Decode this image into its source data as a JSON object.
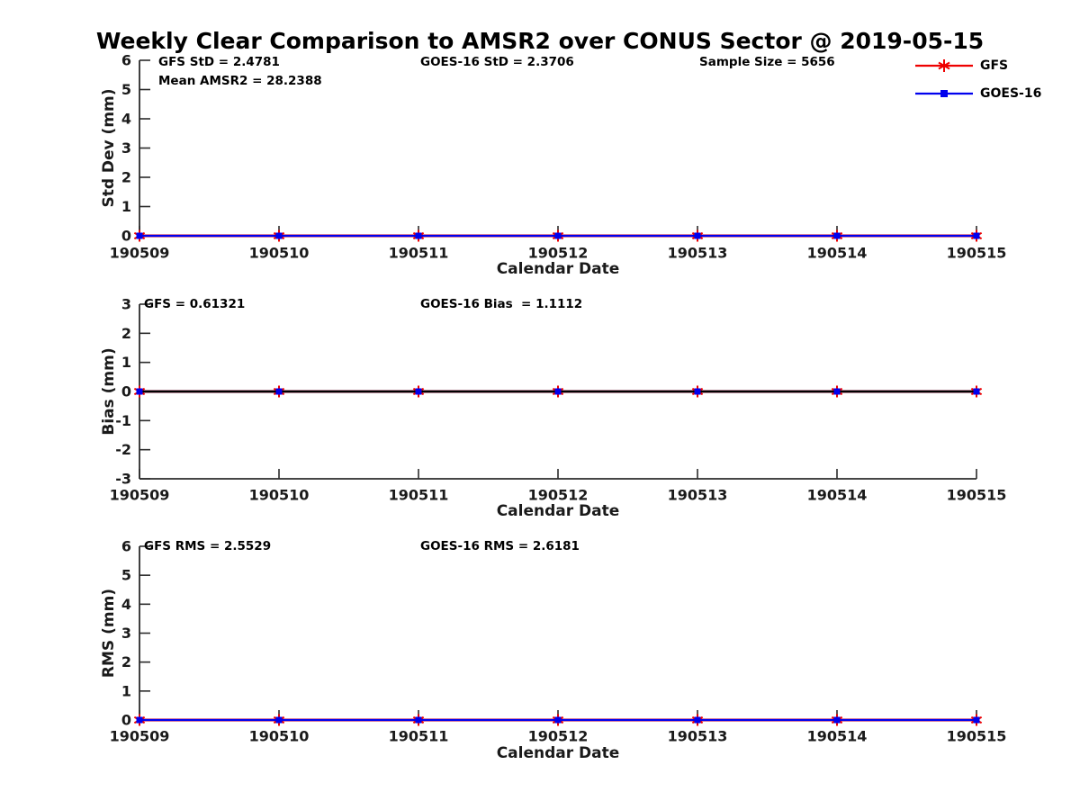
{
  "title": "Weekly Clear Comparison to AMSR2 over CONUS Sector @ 2019-05-15",
  "colors": {
    "gfs_red": "#ee0000",
    "goes_blue": "#0000ee",
    "axis": "#2b2b2b",
    "tick_label": "#1a1a1a",
    "annotation": "#000000",
    "zero_line": "#000000"
  },
  "legend": {
    "items": [
      {
        "label": "GFS",
        "color": "#ee0000",
        "marker": "asterisk"
      },
      {
        "label": "GOES-16",
        "color": "#0000ee",
        "marker": "square"
      }
    ]
  },
  "xlabel": "Calendar Date",
  "x_categories": [
    "190509",
    "190510",
    "190511",
    "190512",
    "190513",
    "190514",
    "190515"
  ],
  "chart_data": [
    {
      "type": "line",
      "name": "stddev",
      "ylabel": "Std Dev (mm)",
      "xlabel": "Calendar Date",
      "x": [
        "190509",
        "190510",
        "190511",
        "190512",
        "190513",
        "190514",
        "190515"
      ],
      "ylim": [
        0,
        6
      ],
      "yticks": [
        0,
        1,
        2,
        3,
        4,
        5,
        6
      ],
      "grid": false,
      "zero_line": false,
      "series": [
        {
          "name": "GFS",
          "color": "#ee0000",
          "marker": "asterisk",
          "values": [
            0,
            0,
            0,
            0,
            0,
            0,
            0
          ]
        },
        {
          "name": "GOES-16",
          "color": "#0000ee",
          "marker": "square",
          "values": [
            0,
            0,
            0,
            0,
            0,
            0,
            0
          ]
        }
      ],
      "annotations": [
        {
          "text": "GFS StD = 2.4781"
        },
        {
          "text": "GOES-16 StD = 2.3706"
        },
        {
          "text": "Sample Size = 5656"
        },
        {
          "text": "Mean AMSR2 = 28.2388"
        }
      ],
      "legend_position": "top-right"
    },
    {
      "type": "line",
      "name": "bias",
      "ylabel": "Bias (mm)",
      "xlabel": "Calendar Date",
      "x": [
        "190509",
        "190510",
        "190511",
        "190512",
        "190513",
        "190514",
        "190515"
      ],
      "ylim": [
        -3,
        3
      ],
      "yticks": [
        -3,
        -2,
        -1,
        0,
        1,
        2,
        3
      ],
      "grid": false,
      "zero_line": true,
      "series": [
        {
          "name": "GFS",
          "color": "#ee0000",
          "marker": "asterisk",
          "values": [
            0,
            0,
            0,
            0,
            0,
            0,
            0
          ]
        },
        {
          "name": "GOES-16",
          "color": "#0000ee",
          "marker": "square",
          "values": [
            0,
            0,
            0,
            0,
            0,
            0,
            0
          ]
        }
      ],
      "annotations": [
        {
          "text": "GFS = 0.61321"
        },
        {
          "text": "GOES-16 Bias  = 1.1112"
        }
      ],
      "legend_position": "none"
    },
    {
      "type": "line",
      "name": "rms",
      "ylabel": "RMS (mm)",
      "xlabel": "Calendar Date",
      "x": [
        "190509",
        "190510",
        "190511",
        "190512",
        "190513",
        "190514",
        "190515"
      ],
      "ylim": [
        0,
        6
      ],
      "yticks": [
        0,
        1,
        2,
        3,
        4,
        5,
        6
      ],
      "grid": false,
      "zero_line": false,
      "series": [
        {
          "name": "GFS",
          "color": "#ee0000",
          "marker": "asterisk",
          "values": [
            0,
            0,
            0,
            0,
            0,
            0,
            0
          ]
        },
        {
          "name": "GOES-16",
          "color": "#0000ee",
          "marker": "square",
          "values": [
            0,
            0,
            0,
            0,
            0,
            0,
            0
          ]
        }
      ],
      "annotations": [
        {
          "text": "GFS RMS = 2.5529"
        },
        {
          "text": "GOES-16 RMS = 2.6181"
        }
      ],
      "legend_position": "none"
    }
  ]
}
